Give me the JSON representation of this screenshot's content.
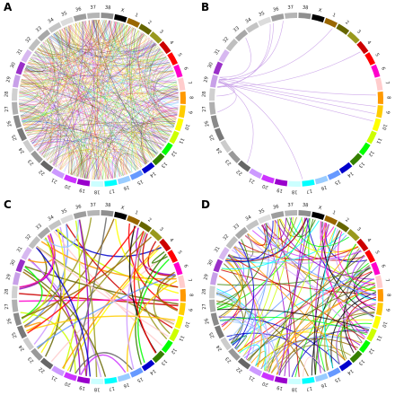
{
  "panels": [
    {
      "letter": "A"
    },
    {
      "letter": "B"
    },
    {
      "letter": "C"
    },
    {
      "letter": "D"
    }
  ],
  "chromosomes": [
    {
      "label": "X",
      "color": "#000000"
    },
    {
      "label": "1",
      "color": "#996600"
    },
    {
      "label": "2",
      "color": "#666600"
    },
    {
      "label": "3",
      "color": "#99991e"
    },
    {
      "label": "4",
      "color": "#cc0000"
    },
    {
      "label": "5",
      "color": "#ff0000"
    },
    {
      "label": "6",
      "color": "#ff00cc"
    },
    {
      "label": "7",
      "color": "#ffcccc"
    },
    {
      "label": "8",
      "color": "#ff9900"
    },
    {
      "label": "9",
      "color": "#ffcc00"
    },
    {
      "label": "10",
      "color": "#ffff00"
    },
    {
      "label": "11",
      "color": "#ccff00"
    },
    {
      "label": "12",
      "color": "#00ff00"
    },
    {
      "label": "13",
      "color": "#358000"
    },
    {
      "label": "14",
      "color": "#0000cc"
    },
    {
      "label": "15",
      "color": "#6699ff"
    },
    {
      "label": "16",
      "color": "#99ccff"
    },
    {
      "label": "17",
      "color": "#00ffff"
    },
    {
      "label": "18",
      "color": "#ccffff"
    },
    {
      "label": "19",
      "color": "#9900cc"
    },
    {
      "label": "20",
      "color": "#cc33ff"
    },
    {
      "label": "21",
      "color": "#cc99ff"
    },
    {
      "label": "22",
      "color": "#666666"
    },
    {
      "label": "23",
      "color": "#999999"
    },
    {
      "label": "24",
      "color": "#cccccc"
    },
    {
      "label": "25",
      "color": "#797979"
    },
    {
      "label": "26",
      "color": "#8a8a8a"
    },
    {
      "label": "27",
      "color": "#b0b0b0"
    },
    {
      "label": "28",
      "color": "#d0d0d0"
    },
    {
      "label": "29",
      "color": "#c8a0e8"
    },
    {
      "label": "30",
      "color": "#9a30c8"
    },
    {
      "label": "31",
      "color": "#d7b8f0"
    },
    {
      "label": "32",
      "color": "#bfbfbf"
    },
    {
      "label": "33",
      "color": "#a8a8a8"
    },
    {
      "label": "34",
      "color": "#c4c4c4"
    },
    {
      "label": "35",
      "color": "#dcdcdc"
    },
    {
      "label": "36",
      "color": "#9d9d9d"
    },
    {
      "label": "37",
      "color": "#b5b5b5"
    },
    {
      "label": "38",
      "color": "#8f8f8f"
    }
  ],
  "palette": [
    "#000000",
    "#996600",
    "#666600",
    "#99991e",
    "#cc0000",
    "#ff0000",
    "#ff00cc",
    "#ffcccc",
    "#ff9900",
    "#ffcc00",
    "#ffff00",
    "#ccff00",
    "#00ff00",
    "#358000",
    "#0000cc",
    "#6699ff",
    "#99ccff",
    "#00ffff",
    "#9900cc",
    "#cc33ff",
    "#cc99ff",
    "#666666"
  ],
  "link_density": {
    "A": 600,
    "B": 14,
    "C": 60,
    "D": 130
  },
  "panel_b_link_color": "#c9a0e8"
}
